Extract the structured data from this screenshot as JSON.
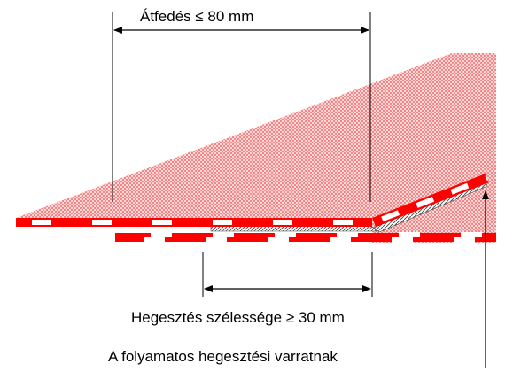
{
  "labels": {
    "overlap": "Átfedés ≤ 80 mm",
    "weld_width": "Hegesztés szélessége ≥ 30 mm",
    "continuous_seam": "A folyamatos hegesztési varratnak"
  },
  "colors": {
    "membrane_red": "#ff0000",
    "membrane_white": "#ffffff",
    "dot_fill": "#ff9999",
    "seam": "#707070",
    "line": "#000000"
  }
}
